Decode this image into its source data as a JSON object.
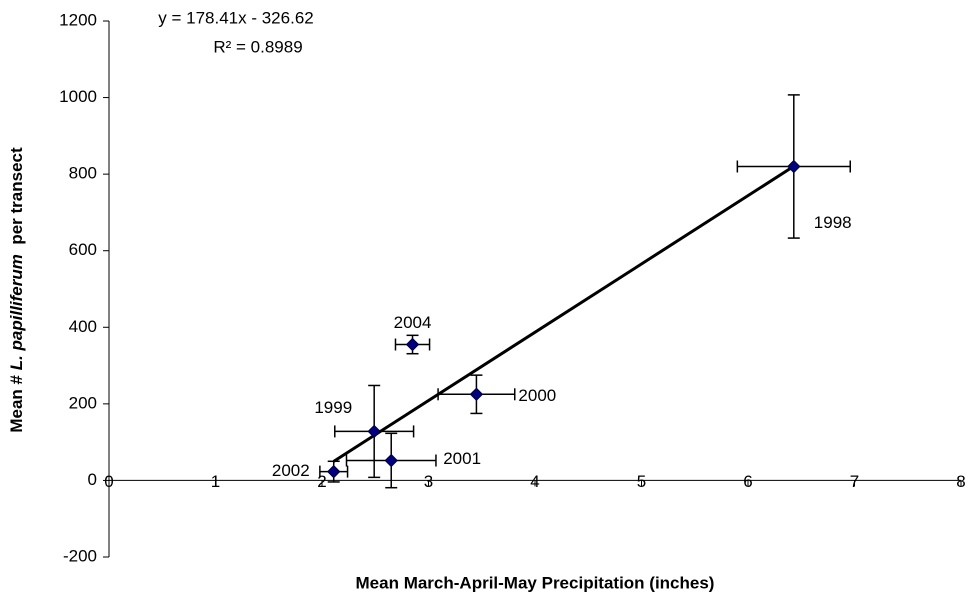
{
  "chart_data": {
    "type": "scatter",
    "xlabel": "Mean March-April-May Precipitation (inches)",
    "ylabel": [
      "Mean # ",
      "L. papilliferum",
      "  per transect"
    ],
    "trendline": {
      "equation": "y = 178.41x - 326.62",
      "slope": 178.41,
      "intercept": -326.62,
      "r2_label": "R² = 0.8989",
      "color": "#000000"
    },
    "series": [
      {
        "color": "#000080",
        "labels": [
          "1998",
          "2004",
          "2000",
          "1999",
          "2001",
          "2002"
        ],
        "x": [
          6.43,
          2.85,
          3.45,
          2.49,
          2.65,
          2.11
        ],
        "y": [
          820,
          355,
          225,
          128,
          52,
          23
        ],
        "xerr": [
          0.53,
          0.16,
          0.36,
          0.37,
          0.42,
          0.13
        ],
        "yerr": [
          187,
          24,
          50,
          120,
          71,
          27
        ]
      }
    ],
    "xlim": [
      0,
      8
    ],
    "xticks": [
      0,
      1,
      2,
      3,
      4,
      5,
      6,
      7,
      8
    ],
    "ylim": [
      -200,
      1200
    ],
    "yticks": [
      -200,
      0,
      200,
      400,
      600,
      800,
      1000,
      1200
    ]
  }
}
